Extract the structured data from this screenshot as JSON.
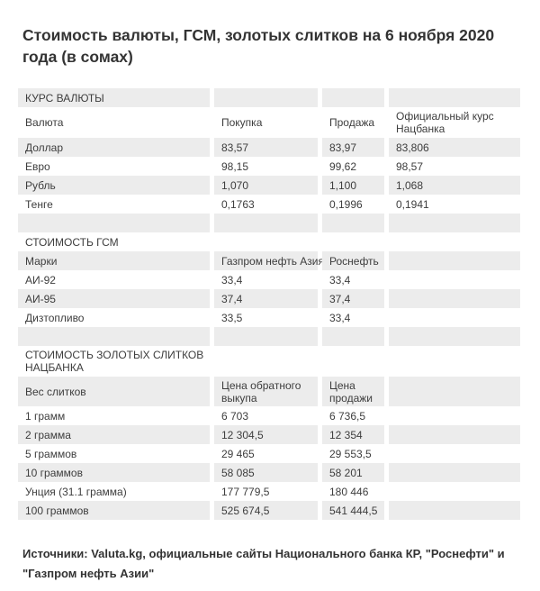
{
  "page": {
    "title": "Стоимость валюты, ГСМ, золотых слитков на 6 ноября 2020 года (в сомах)",
    "source_note": "Источники: Valuta.kg, официальные сайты Национального банка КР, \"Роснефти\" и \"Газпром нефть Азии\""
  },
  "colors": {
    "background": "#ffffff",
    "row_shade": "#ececec",
    "table_text": "#3d3d3d",
    "title_text": "#333333"
  },
  "chart_data": [
    {
      "type": "table",
      "title": "КУРС ВАЛЮТЫ",
      "columns": [
        "Валюта",
        "Покупка",
        "Продажа",
        "Официальный курс Нацбанка"
      ],
      "rows": [
        [
          "Доллар",
          "83,57",
          "83,97",
          "83,806"
        ],
        [
          "Евро",
          "98,15",
          "99,62",
          "98,57"
        ],
        [
          "Рубль",
          "1,070",
          "1,100",
          "1,068"
        ],
        [
          "Тенге",
          "0,1763",
          "0,1996",
          "0,1941"
        ]
      ]
    },
    {
      "type": "table",
      "title": "СТОИМОСТЬ ГСМ",
      "columns": [
        "Марки",
        "Газпром нефть Азия",
        "Роснефть"
      ],
      "rows": [
        [
          "АИ-92",
          "33,4",
          "33,4"
        ],
        [
          "АИ-95",
          "37,4",
          "37,4"
        ],
        [
          "Дизтопливо",
          "33,5",
          "33,4"
        ]
      ]
    },
    {
      "type": "table",
      "title": "СТОИМОСТЬ ЗОЛОТЫХ СЛИТКОВ НАЦБАНКА",
      "columns": [
        "Вес слитков",
        "Цена обратного выкупа",
        "Цена продажи"
      ],
      "rows": [
        [
          "1 грамм",
          "6 703",
          "6 736,5"
        ],
        [
          "2 грамма",
          "12 304,5",
          "12 354"
        ],
        [
          "5 граммов",
          "29 465",
          "29 553,5"
        ],
        [
          "10 граммов",
          "58 085",
          "58 201"
        ],
        [
          "Унция (31.1 грамма)",
          "177 779,5",
          "180 446"
        ],
        [
          "100 граммов",
          "525 674,5",
          "541 444,5"
        ]
      ]
    }
  ]
}
